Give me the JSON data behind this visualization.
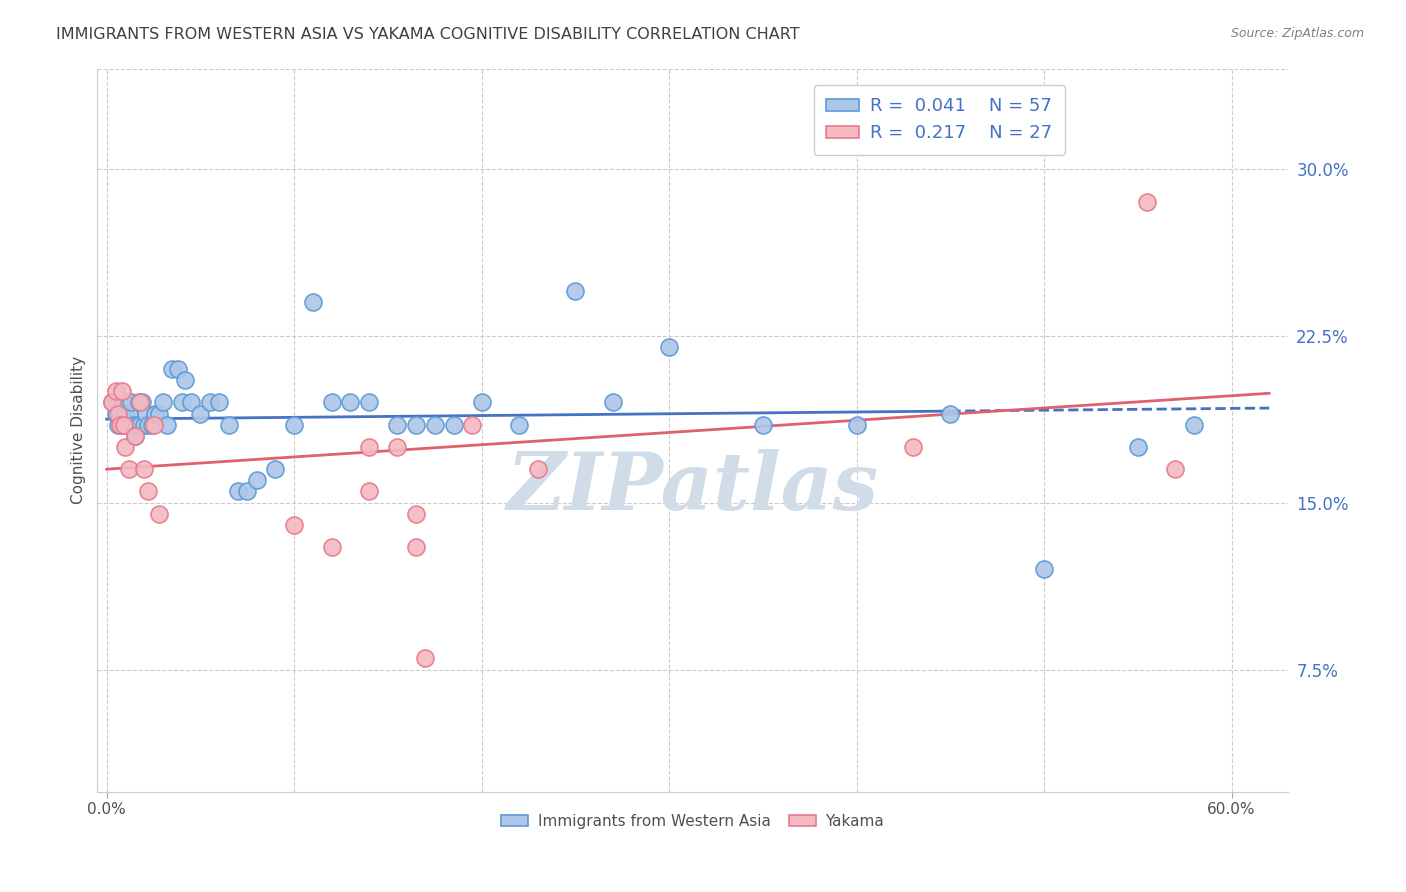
{
  "title": "IMMIGRANTS FROM WESTERN ASIA VS YAKAMA COGNITIVE DISABILITY CORRELATION CHART",
  "source": "Source: ZipAtlas.com",
  "ylabel": "Cognitive Disability",
  "legend_blue_R": "0.041",
  "legend_blue_N": "57",
  "legend_pink_R": "0.217",
  "legend_pink_N": "27",
  "legend_label1": "Immigrants from Western Asia",
  "legend_label2": "Yakama",
  "ytick_labels": [
    "7.5%",
    "15.0%",
    "22.5%",
    "30.0%"
  ],
  "ytick_values": [
    0.075,
    0.15,
    0.225,
    0.3
  ],
  "xlim": [
    -0.005,
    0.63
  ],
  "ylim": [
    0.02,
    0.345
  ],
  "blue_scatter_x": [
    0.003,
    0.005,
    0.006,
    0.007,
    0.008,
    0.009,
    0.01,
    0.011,
    0.012,
    0.013,
    0.014,
    0.015,
    0.016,
    0.017,
    0.018,
    0.019,
    0.02,
    0.021,
    0.022,
    0.024,
    0.026,
    0.028,
    0.03,
    0.032,
    0.035,
    0.038,
    0.04,
    0.042,
    0.045,
    0.05,
    0.055,
    0.06,
    0.065,
    0.07,
    0.075,
    0.08,
    0.09,
    0.1,
    0.11,
    0.12,
    0.13,
    0.14,
    0.155,
    0.165,
    0.175,
    0.185,
    0.2,
    0.22,
    0.25,
    0.27,
    0.3,
    0.35,
    0.4,
    0.45,
    0.5,
    0.55,
    0.58
  ],
  "blue_scatter_y": [
    0.195,
    0.19,
    0.185,
    0.19,
    0.185,
    0.195,
    0.19,
    0.185,
    0.19,
    0.195,
    0.185,
    0.18,
    0.185,
    0.195,
    0.185,
    0.195,
    0.185,
    0.19,
    0.185,
    0.185,
    0.19,
    0.19,
    0.195,
    0.185,
    0.21,
    0.21,
    0.195,
    0.205,
    0.195,
    0.19,
    0.195,
    0.195,
    0.185,
    0.155,
    0.155,
    0.16,
    0.165,
    0.185,
    0.24,
    0.195,
    0.195,
    0.195,
    0.185,
    0.185,
    0.185,
    0.185,
    0.195,
    0.185,
    0.245,
    0.195,
    0.22,
    0.185,
    0.185,
    0.19,
    0.12,
    0.175,
    0.185
  ],
  "pink_scatter_x": [
    0.003,
    0.005,
    0.006,
    0.007,
    0.008,
    0.009,
    0.01,
    0.012,
    0.015,
    0.018,
    0.02,
    0.022,
    0.025,
    0.028,
    0.14,
    0.155,
    0.165,
    0.195,
    0.23,
    0.43,
    0.555,
    0.57,
    0.1,
    0.12,
    0.14,
    0.165,
    0.17
  ],
  "pink_scatter_y": [
    0.195,
    0.2,
    0.19,
    0.185,
    0.2,
    0.185,
    0.175,
    0.165,
    0.18,
    0.195,
    0.165,
    0.155,
    0.185,
    0.145,
    0.175,
    0.175,
    0.145,
    0.185,
    0.165,
    0.175,
    0.285,
    0.165,
    0.14,
    0.13,
    0.155,
    0.13,
    0.08
  ],
  "blue_scatter_color": "#aec6e8",
  "blue_edge_color": "#5b9bd5",
  "pink_scatter_color": "#f4b8c1",
  "pink_edge_color": "#e87a8a",
  "blue_line_color": "#4472c4",
  "pink_line_color": "#e06070",
  "watermark": "ZIPatlas",
  "watermark_color": "#d0dce8",
  "grid_color": "#cccccc",
  "title_color": "#404040",
  "axis_label_color": "#505050",
  "right_tick_color": "#4472c4",
  "source_color": "#808080"
}
